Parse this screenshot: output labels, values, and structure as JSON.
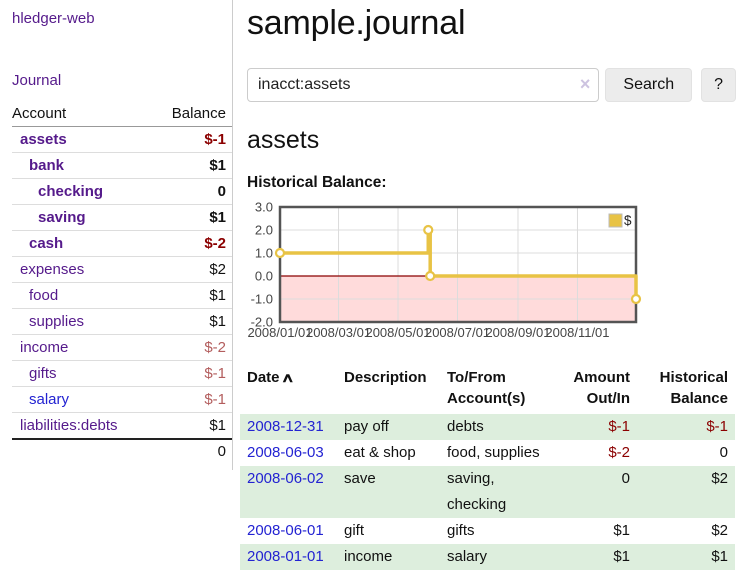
{
  "colors": {
    "link_purple": "#551a8b",
    "link_blue": "#2323d2",
    "negative": "#8b0000",
    "negative_dim": "#b35d5d",
    "row_stripe_green": "#ddeedd",
    "chart_line_gold": "#e8c345",
    "chart_negative_fill": "#ffdbdb",
    "chart_zero_line": "#8b0000"
  },
  "sidebar": {
    "brand": "hledger-web",
    "journal_link": "Journal",
    "accounts_table": {
      "headers": [
        "Account",
        "Balance"
      ],
      "rows": [
        {
          "name": "assets",
          "level": 1,
          "bold": true,
          "balance": "$-1",
          "balance_style": "neg",
          "link_style": "purple"
        },
        {
          "name": "bank",
          "level": 2,
          "bold": true,
          "balance": "$1",
          "balance_style": "pos",
          "link_style": "purple"
        },
        {
          "name": "checking",
          "level": 3,
          "bold": true,
          "balance": "0",
          "balance_style": "pos",
          "link_style": "purple"
        },
        {
          "name": "saving",
          "level": 3,
          "bold": true,
          "balance": "$1",
          "balance_style": "pos",
          "link_style": "purple"
        },
        {
          "name": "cash",
          "level": 2,
          "bold": true,
          "balance": "$-2",
          "balance_style": "neg",
          "link_style": "purple"
        },
        {
          "name": "expenses",
          "level": 1,
          "bold": false,
          "balance": "$2",
          "balance_style": "pos",
          "link_style": "purple"
        },
        {
          "name": "food",
          "level": 2,
          "bold": false,
          "balance": "$1",
          "balance_style": "pos",
          "link_style": "purple"
        },
        {
          "name": "supplies",
          "level": 2,
          "bold": false,
          "balance": "$1",
          "balance_style": "pos",
          "link_style": "purple"
        },
        {
          "name": "income",
          "level": 1,
          "bold": false,
          "balance": "$-2",
          "balance_style": "neg-dim",
          "link_style": "purple"
        },
        {
          "name": "gifts",
          "level": 2,
          "bold": false,
          "balance": "$-1",
          "balance_style": "neg-dim",
          "link_style": "purple"
        },
        {
          "name": "salary",
          "level": 2,
          "bold": false,
          "balance": "$-1",
          "balance_style": "neg-dim",
          "link_style": "blue"
        },
        {
          "name": "liabilities:debts",
          "level": 1,
          "bold": false,
          "balance": "$1",
          "balance_style": "pos",
          "link_style": "purple"
        }
      ],
      "total": "0"
    }
  },
  "main": {
    "title": "sample.journal",
    "search": {
      "value": "inacct:assets",
      "clear_icon": "×",
      "button_label": "Search",
      "help_label": "?"
    },
    "section_title": "assets",
    "chart_label": "Historical Balance:"
  },
  "chart_data": {
    "type": "line",
    "title": "Historical Balance",
    "step": true,
    "x_range": [
      "2008-01-01",
      "2008-12-31"
    ],
    "ylim": [
      -2,
      3
    ],
    "yticks": [
      3.0,
      2.0,
      1.0,
      0.0,
      -1.0,
      -2.0
    ],
    "xticks": [
      {
        "date": "2008-01-01",
        "label": "2008/01/01"
      },
      {
        "date": "2008-03-01",
        "label": "2008/03/01"
      },
      {
        "date": "2008-05-01",
        "label": "2008/05/01"
      },
      {
        "date": "2008-07-01",
        "label": "2008/07/01"
      },
      {
        "date": "2008-09-01",
        "label": "2008/09/01"
      },
      {
        "date": "2008-11-01",
        "label": "2008/11/01"
      }
    ],
    "grid": true,
    "legend_position": "top-right",
    "series": [
      {
        "name": "$",
        "color": "#e8c345",
        "points": [
          [
            "2008-01-01",
            1
          ],
          [
            "2008-06-01",
            2
          ],
          [
            "2008-06-03",
            0
          ],
          [
            "2008-12-31",
            -1
          ]
        ]
      }
    ]
  },
  "register": {
    "headers": [
      "Date",
      "Description",
      "To/From Account(s)",
      "Amount Out/In",
      "Historical Balance"
    ],
    "sort_icon": "∧",
    "rows": [
      {
        "date": "2008-12-31",
        "description": "pay off",
        "accounts": "debts",
        "amount": "$-1",
        "amount_negative": true,
        "balance": "$-1",
        "balance_negative": true
      },
      {
        "date": "2008-06-03",
        "description": "eat & shop",
        "accounts": "food, supplies",
        "amount": "$-2",
        "amount_negative": true,
        "balance": "0",
        "balance_negative": false
      },
      {
        "date": "2008-06-02",
        "description": "save",
        "accounts": "saving, checking",
        "amount": "0",
        "amount_negative": false,
        "balance": "$2",
        "balance_negative": false
      },
      {
        "date": "2008-06-01",
        "description": "gift",
        "accounts": "gifts",
        "amount": "$1",
        "amount_negative": false,
        "balance": "$2",
        "balance_negative": false
      },
      {
        "date": "2008-01-01",
        "description": "income",
        "accounts": "salary",
        "amount": "$1",
        "amount_negative": false,
        "balance": "$1",
        "balance_negative": false
      }
    ]
  }
}
